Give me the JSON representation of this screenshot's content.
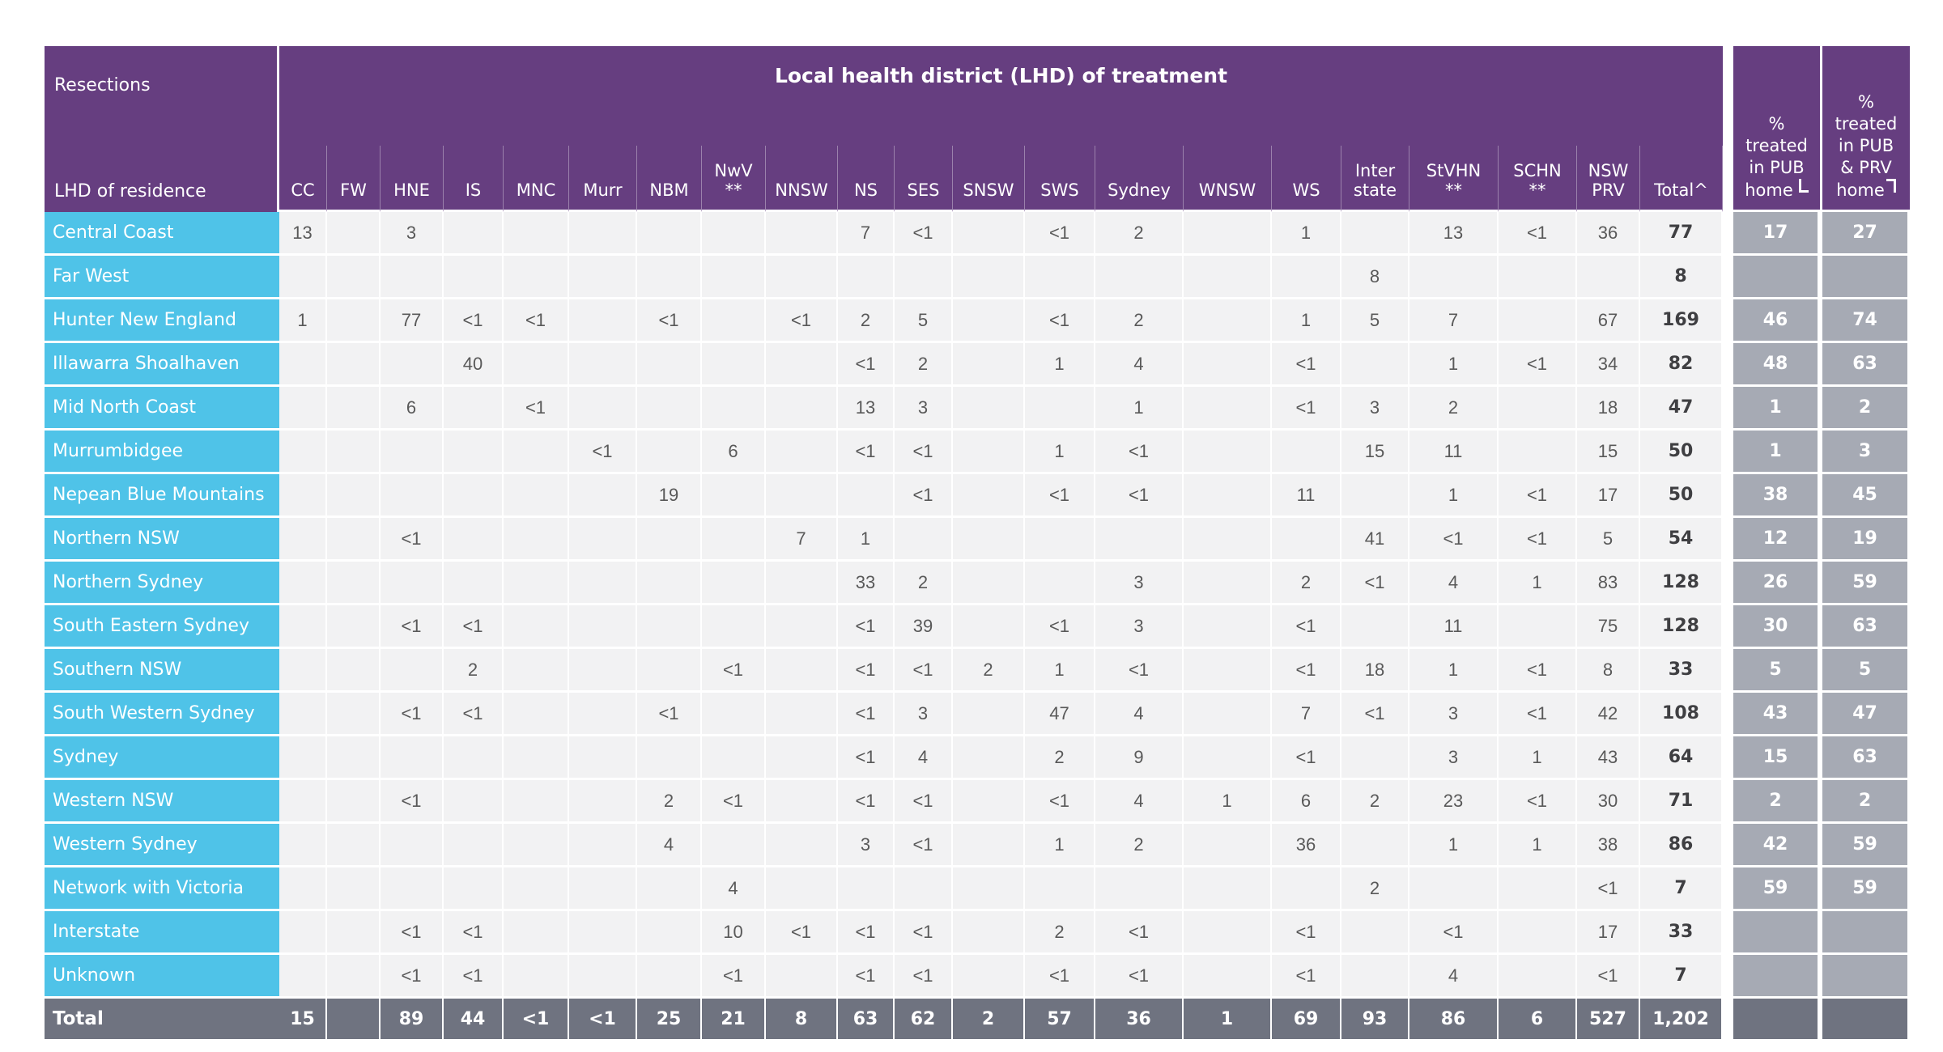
{
  "chart_data": {
    "type": "table",
    "title": "Resections",
    "row_dimension_label": "LHD of residence",
    "group_title": "Local health district (LHD) of treatment",
    "columns": [
      {
        "key": "cc",
        "label": "CC"
      },
      {
        "key": "fw",
        "label": "FW"
      },
      {
        "key": "hne",
        "label": "HNE"
      },
      {
        "key": "is",
        "label": "IS"
      },
      {
        "key": "mnc",
        "label": "MNC"
      },
      {
        "key": "murr",
        "label": "Murr"
      },
      {
        "key": "nbm",
        "label": "NBM"
      },
      {
        "key": "nwv",
        "label": "NwV\n**"
      },
      {
        "key": "nnsw",
        "label": "NNSW"
      },
      {
        "key": "ns",
        "label": "NS"
      },
      {
        "key": "ses",
        "label": "SES"
      },
      {
        "key": "snsw",
        "label": "SNSW"
      },
      {
        "key": "sws",
        "label": "SWS"
      },
      {
        "key": "sydney",
        "label": "Sydney"
      },
      {
        "key": "wnsw",
        "label": "WNSW"
      },
      {
        "key": "ws",
        "label": "WS"
      },
      {
        "key": "interstate",
        "label": "Inter\nstate"
      },
      {
        "key": "stvhn",
        "label": "StVHN\n**"
      },
      {
        "key": "schn",
        "label": "SCHN\n**"
      },
      {
        "key": "nswprv",
        "label": "NSW\nPRV"
      },
      {
        "key": "total",
        "label": "Total^"
      }
    ],
    "pct_columns": [
      {
        "key": "pct_pub_home",
        "display": "%\ntreated\nin PUB\nhome",
        "mark": "bottom-left-corner-icon"
      },
      {
        "key": "pct_pub_prv_home",
        "display": "%\ntreated\nin PUB\n& PRV\nhome",
        "mark": "top-right-corner-icon"
      }
    ],
    "rows": [
      {
        "label": "Central Coast",
        "values": [
          "13",
          "",
          "3",
          "",
          "",
          "",
          "",
          "",
          "",
          "7",
          "<1",
          "",
          "<1",
          "2",
          "",
          "1",
          "",
          "13",
          "<1",
          "36",
          "77"
        ],
        "pct": [
          "17",
          "27"
        ]
      },
      {
        "label": "Far West",
        "values": [
          "",
          "",
          "",
          "",
          "",
          "",
          "",
          "",
          "",
          "",
          "",
          "",
          "",
          "",
          "",
          "",
          "8",
          "",
          "",
          "",
          "8"
        ],
        "pct": [
          "",
          ""
        ]
      },
      {
        "label": "Hunter New England",
        "values": [
          "1",
          "",
          "77",
          "<1",
          "<1",
          "",
          "<1",
          "",
          "<1",
          "2",
          "5",
          "",
          "<1",
          "2",
          "",
          "1",
          "5",
          "7",
          "",
          "67",
          "169"
        ],
        "pct": [
          "46",
          "74"
        ]
      },
      {
        "label": "Illawarra Shoalhaven",
        "values": [
          "",
          "",
          "",
          "40",
          "",
          "",
          "",
          "",
          "",
          "<1",
          "2",
          "",
          "1",
          "4",
          "",
          "<1",
          "",
          "1",
          "<1",
          "34",
          "82"
        ],
        "pct": [
          "48",
          "63"
        ]
      },
      {
        "label": "Mid North Coast",
        "values": [
          "",
          "",
          "6",
          "",
          "<1",
          "",
          "",
          "",
          "",
          "13",
          "3",
          "",
          "",
          "1",
          "",
          "<1",
          "3",
          "2",
          "",
          "18",
          "47"
        ],
        "pct": [
          "1",
          "2"
        ]
      },
      {
        "label": "Murrumbidgee",
        "values": [
          "",
          "",
          "",
          "",
          "",
          "<1",
          "",
          "6",
          "",
          "<1",
          "<1",
          "",
          "1",
          "<1",
          "",
          "",
          "15",
          "11",
          "",
          "15",
          "50"
        ],
        "pct": [
          "1",
          "3"
        ]
      },
      {
        "label": "Nepean Blue Mountains",
        "values": [
          "",
          "",
          "",
          "",
          "",
          "",
          "19",
          "",
          "",
          "",
          "<1",
          "",
          "<1",
          "<1",
          "",
          "11",
          "",
          "1",
          "<1",
          "17",
          "50"
        ],
        "pct": [
          "38",
          "45"
        ]
      },
      {
        "label": "Northern NSW",
        "values": [
          "",
          "",
          "<1",
          "",
          "",
          "",
          "",
          "",
          "7",
          "1",
          "",
          "",
          "",
          "",
          "",
          "",
          "41",
          "<1",
          "<1",
          "5",
          "54"
        ],
        "pct": [
          "12",
          "19"
        ]
      },
      {
        "label": "Northern Sydney",
        "values": [
          "",
          "",
          "",
          "",
          "",
          "",
          "",
          "",
          "",
          "33",
          "2",
          "",
          "",
          "3",
          "",
          "2",
          "<1",
          "4",
          "1",
          "83",
          "128"
        ],
        "pct": [
          "26",
          "59"
        ]
      },
      {
        "label": "South Eastern Sydney",
        "values": [
          "",
          "",
          "<1",
          "<1",
          "",
          "",
          "",
          "",
          "",
          "<1",
          "39",
          "",
          "<1",
          "3",
          "",
          "<1",
          "",
          "11",
          "",
          "75",
          "128"
        ],
        "pct": [
          "30",
          "63"
        ]
      },
      {
        "label": "Southern NSW",
        "values": [
          "",
          "",
          "",
          "2",
          "",
          "",
          "",
          "<1",
          "",
          "<1",
          "<1",
          "2",
          "1",
          "<1",
          "",
          "<1",
          "18",
          "1",
          "<1",
          "8",
          "33"
        ],
        "pct": [
          "5",
          "5"
        ]
      },
      {
        "label": "South Western Sydney",
        "values": [
          "",
          "",
          "<1",
          "<1",
          "",
          "",
          "<1",
          "",
          "",
          "<1",
          "3",
          "",
          "47",
          "4",
          "",
          "7",
          "<1",
          "3",
          "<1",
          "42",
          "108"
        ],
        "pct": [
          "43",
          "47"
        ]
      },
      {
        "label": "Sydney",
        "values": [
          "",
          "",
          "",
          "",
          "",
          "",
          "",
          "",
          "",
          "<1",
          "4",
          "",
          "2",
          "9",
          "",
          "<1",
          "",
          "3",
          "1",
          "43",
          "64"
        ],
        "pct": [
          "15",
          "63"
        ]
      },
      {
        "label": "Western NSW",
        "values": [
          "",
          "",
          "<1",
          "",
          "",
          "",
          "2",
          "<1",
          "",
          "<1",
          "<1",
          "",
          "<1",
          "4",
          "1",
          "6",
          "2",
          "23",
          "<1",
          "30",
          "71"
        ],
        "pct": [
          "2",
          "2"
        ]
      },
      {
        "label": "Western Sydney",
        "values": [
          "",
          "",
          "",
          "",
          "",
          "",
          "4",
          "",
          "",
          "3",
          "<1",
          "",
          "1",
          "2",
          "",
          "36",
          "",
          "1",
          "1",
          "38",
          "86"
        ],
        "pct": [
          "42",
          "59"
        ]
      },
      {
        "label": "Network with Victoria",
        "values": [
          "",
          "",
          "",
          "",
          "",
          "",
          "",
          "4",
          "",
          "",
          "",
          "",
          "",
          "",
          "",
          "",
          "2",
          "",
          "",
          "<1",
          "7"
        ],
        "pct": [
          "59",
          "59"
        ]
      },
      {
        "label": "Interstate",
        "values": [
          "",
          "",
          "<1",
          "<1",
          "",
          "",
          "",
          "10",
          "<1",
          "<1",
          "<1",
          "",
          "2",
          "<1",
          "",
          "<1",
          "",
          "<1",
          "",
          "17",
          "33"
        ],
        "pct": [
          "",
          ""
        ]
      },
      {
        "label": "Unknown",
        "values": [
          "",
          "",
          "<1",
          "<1",
          "",
          "",
          "",
          "<1",
          "",
          "<1",
          "<1",
          "",
          "<1",
          "<1",
          "",
          "<1",
          "",
          "4",
          "",
          "<1",
          "7"
        ],
        "pct": [
          "",
          ""
        ]
      }
    ],
    "total_row": {
      "label": "Total",
      "values": [
        "15",
        "",
        "89",
        "44",
        "<1",
        "<1",
        "25",
        "21",
        "8",
        "63",
        "62",
        "2",
        "57",
        "36",
        "1",
        "69",
        "93",
        "86",
        "6",
        "527",
        "1,202"
      ],
      "pct": [
        "",
        ""
      ]
    }
  },
  "colors": {
    "header_purple": "#663E80",
    "row_label_cyan": "#4FC3E8",
    "cell_background": "#F2F2F3",
    "cell_text": "#595959",
    "total_column_text": "#3F3F42",
    "pct_cell_gray": "#A6AAB4",
    "total_row_slate": "#6F7380",
    "grid_white": "#FFFFFF"
  }
}
